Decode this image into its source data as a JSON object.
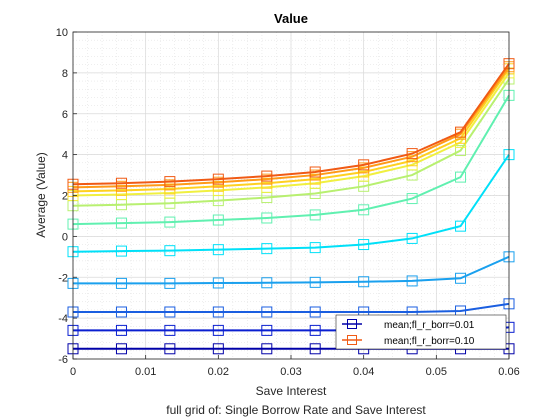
{
  "chart_data": {
    "type": "line",
    "title": "Value",
    "xlabel": "Save Interest",
    "ylabel": "Average (Value)",
    "subtitle": "full grid of: Single Borrow Rate and Save Interest",
    "xlim": [
      0,
      0.06
    ],
    "ylim": [
      -6,
      10
    ],
    "x_ticks": [
      "0",
      "0.01",
      "0.02",
      "0.03",
      "0.04",
      "0.05",
      "0.06"
    ],
    "y_ticks": [
      "-6",
      "-4",
      "-2",
      "0",
      "2",
      "4",
      "6",
      "8",
      "10"
    ],
    "grid": true,
    "minor_grid": true,
    "marker": "square",
    "legend_position": "bottom-right",
    "legend": [
      "mean;fl_r_borr=0.01",
      "mean;fl_r_borr=0.10"
    ],
    "x": [
      0,
      0.00667,
      0.01333,
      0.02,
      0.02667,
      0.03333,
      0.04,
      0.04667,
      0.05333,
      0.06
    ],
    "series": [
      {
        "color": "#0000a8",
        "values": [
          -5.5,
          -5.5,
          -5.5,
          -5.5,
          -5.5,
          -5.5,
          -5.5,
          -5.5,
          -5.5,
          -5.5
        ]
      },
      {
        "color": "#0a1fd0",
        "values": [
          -4.6,
          -4.6,
          -4.6,
          -4.6,
          -4.6,
          -4.6,
          -4.6,
          -4.6,
          -4.6,
          -4.45
        ]
      },
      {
        "color": "#1a5ee0",
        "values": [
          -3.7,
          -3.7,
          -3.7,
          -3.7,
          -3.7,
          -3.7,
          -3.7,
          -3.7,
          -3.65,
          -3.3
        ]
      },
      {
        "color": "#1aa0ee",
        "values": [
          -2.3,
          -2.3,
          -2.3,
          -2.28,
          -2.27,
          -2.25,
          -2.22,
          -2.18,
          -2.05,
          -1.0
        ]
      },
      {
        "color": "#00e0f8",
        "values": [
          -0.75,
          -0.72,
          -0.7,
          -0.65,
          -0.6,
          -0.55,
          -0.4,
          -0.1,
          0.5,
          4.0
        ]
      },
      {
        "color": "#60f0b0",
        "values": [
          0.6,
          0.65,
          0.7,
          0.8,
          0.9,
          1.05,
          1.3,
          1.85,
          2.9,
          6.9
        ]
      },
      {
        "color": "#b8f070",
        "values": [
          1.5,
          1.55,
          1.62,
          1.75,
          1.9,
          2.1,
          2.45,
          3.0,
          4.2,
          7.7
        ]
      },
      {
        "color": "#f0f040",
        "values": [
          2.0,
          2.05,
          2.12,
          2.25,
          2.4,
          2.6,
          2.95,
          3.5,
          4.6,
          8.0
        ]
      },
      {
        "color": "#ffd020",
        "values": [
          2.2,
          2.25,
          2.32,
          2.45,
          2.6,
          2.8,
          3.15,
          3.7,
          4.8,
          8.2
        ]
      },
      {
        "color": "#ff9a18",
        "values": [
          2.4,
          2.45,
          2.52,
          2.65,
          2.8,
          3.0,
          3.35,
          3.9,
          5.0,
          8.3
        ]
      },
      {
        "color": "#f05a14",
        "values": [
          2.55,
          2.6,
          2.68,
          2.8,
          2.95,
          3.15,
          3.5,
          4.05,
          5.1,
          8.45
        ]
      }
    ]
  }
}
